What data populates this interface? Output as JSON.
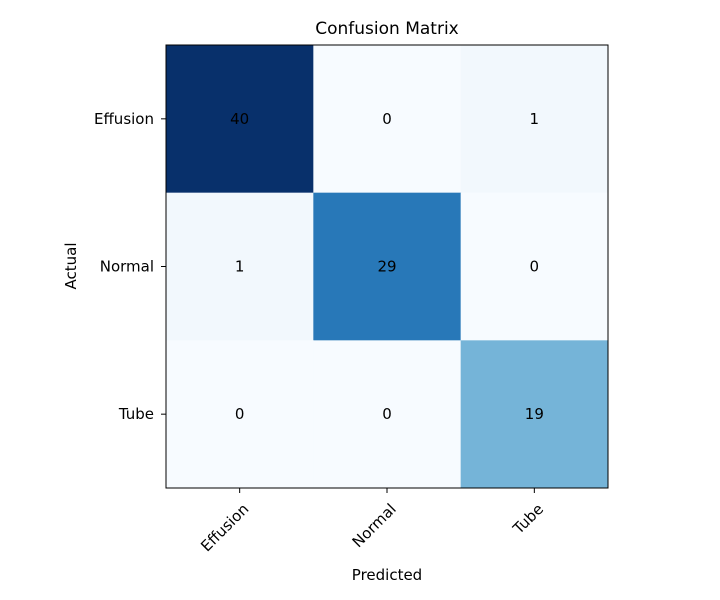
{
  "chart_data": {
    "type": "heatmap",
    "title": "Confusion Matrix",
    "xlabel": "Predicted",
    "ylabel": "Actual",
    "x_categories": [
      "Effusion",
      "Normal",
      "Tube"
    ],
    "y_categories": [
      "Effusion",
      "Normal",
      "Tube"
    ],
    "values": [
      [
        40,
        0,
        1
      ],
      [
        1,
        29,
        0
      ],
      [
        0,
        0,
        19
      ]
    ],
    "colormap": "Blues",
    "color_low": "#f7fbff",
    "color_high": "#08306b",
    "vmin": 0,
    "vmax": 40,
    "grid": false,
    "legend": "none"
  }
}
